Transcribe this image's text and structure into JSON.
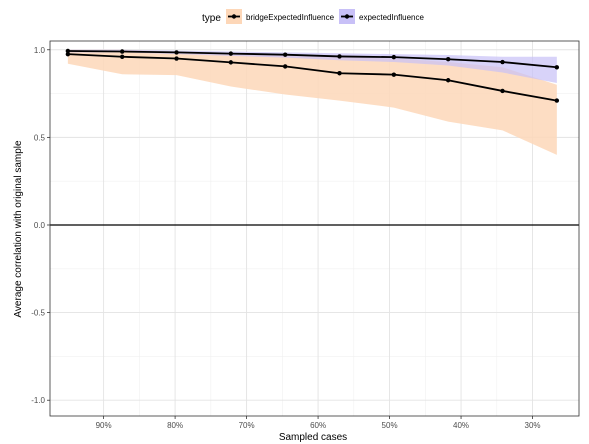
{
  "chart_data": {
    "type": "line",
    "xlabel": "Sampled cases",
    "ylabel": "Average correlation with original sample",
    "x_reversed": true,
    "xlim": [
      0.235,
      0.975
    ],
    "ylim": [
      -1.09,
      1.05
    ],
    "x_ticks": [
      0.9,
      0.8,
      0.7,
      0.6,
      0.5,
      0.4,
      0.3
    ],
    "x_tick_labels": [
      "90%",
      "80%",
      "70%",
      "60%",
      "50%",
      "40%",
      "30%"
    ],
    "y_ticks": [
      -1.0,
      -0.5,
      0.0,
      0.5,
      1.0
    ],
    "y_tick_labels": [
      "-1.0",
      "-0.5",
      "0.0",
      "0.5",
      "1.0"
    ],
    "hline": 0,
    "grid": true,
    "legend": {
      "title": "type",
      "position": "top"
    },
    "x": [
      0.95,
      0.874,
      0.798,
      0.722,
      0.646,
      0.57,
      0.494,
      0.418,
      0.342,
      0.266
    ],
    "series": [
      {
        "name": "bridgeExpectedInfluence",
        "line_color": "#000000",
        "fill_color": "#FDD7B8",
        "values": [
          0.975,
          0.96,
          0.95,
          0.928,
          0.905,
          0.866,
          0.858,
          0.826,
          0.765,
          0.71
        ],
        "lower": [
          0.92,
          0.86,
          0.855,
          0.79,
          0.745,
          0.71,
          0.67,
          0.59,
          0.54,
          0.4
        ],
        "upper": [
          1.0,
          1.0,
          0.99,
          0.98,
          0.97,
          0.96,
          0.95,
          0.93,
          0.9,
          0.8
        ]
      },
      {
        "name": "expectedInfluence",
        "line_color": "#000000",
        "fill_color": "#C8C0F7",
        "values": [
          0.993,
          0.99,
          0.985,
          0.978,
          0.972,
          0.962,
          0.958,
          0.946,
          0.93,
          0.9
        ],
        "lower": [
          0.985,
          0.985,
          0.975,
          0.965,
          0.955,
          0.94,
          0.93,
          0.91,
          0.87,
          0.81
        ],
        "upper": [
          1.0,
          1.0,
          0.995,
          0.99,
          0.985,
          0.98,
          0.975,
          0.97,
          0.96,
          0.96
        ]
      }
    ]
  }
}
